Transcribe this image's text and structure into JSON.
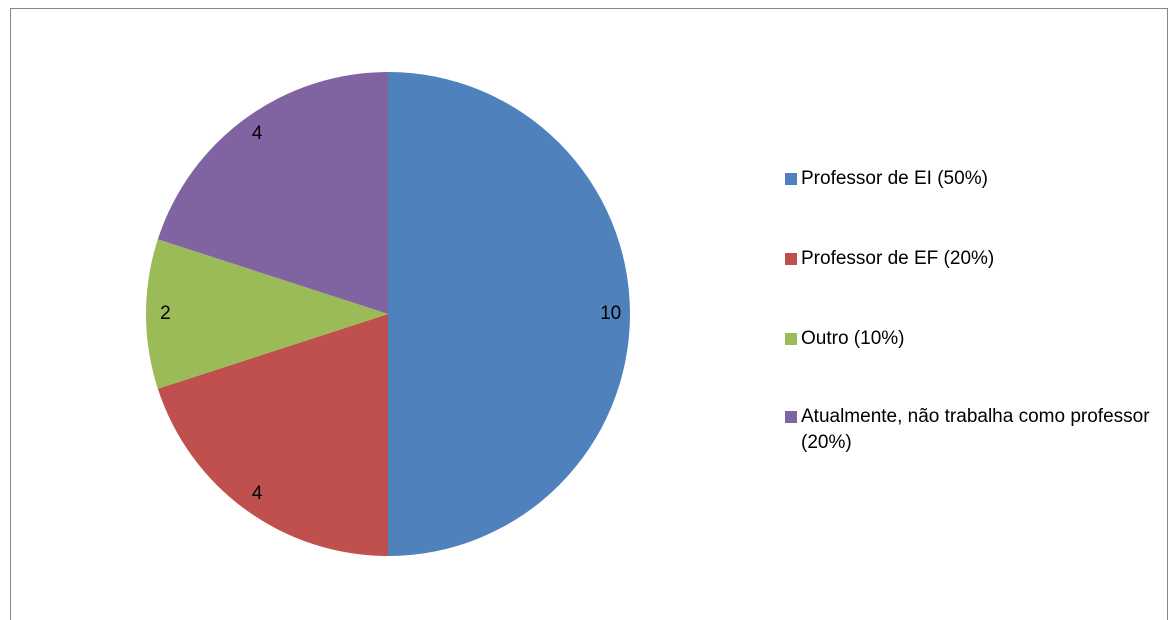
{
  "chart_data": {
    "type": "pie",
    "categories": [
      "Professor de EI (50%)",
      "Professor de EF (20%)",
      "Outro (10%)",
      "Atualmente, não trabalha como professor (20%)"
    ],
    "values": [
      10,
      4,
      2,
      4
    ],
    "colors": [
      "#4f81bd",
      "#c0504d",
      "#9bbb59",
      "#8064a2"
    ],
    "legend": "right"
  }
}
